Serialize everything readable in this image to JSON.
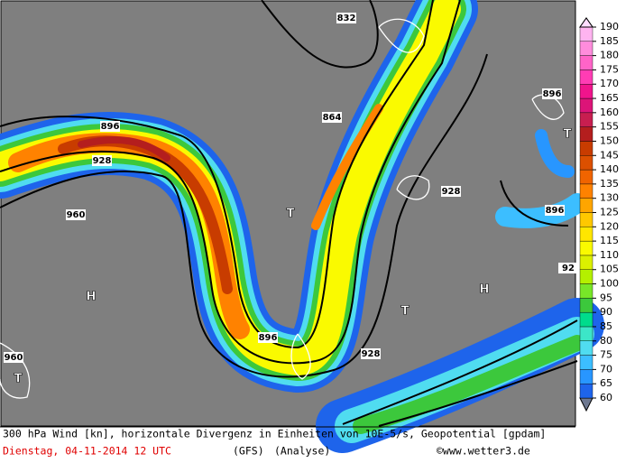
{
  "map": {
    "caption": "300 hPa Wind [kn], horizontale Divergenz in Einheiten von 10E-5/s, Geopotential [gpdam]",
    "date": "Dienstag, 04-11-2014  12 UTC",
    "model": "(GFS)",
    "analysis": "(Analyse)",
    "credit": "©www.wetter3.de",
    "contour_labels": [
      "896",
      "928",
      "960",
      "832",
      "864",
      "896",
      "928",
      "928",
      "896",
      "896",
      "92",
      "960"
    ],
    "pressure_centers": [
      "H",
      "H",
      "T",
      "T",
      "T",
      "T"
    ]
  },
  "colorbar": {
    "ticks": [
      60,
      65,
      70,
      75,
      80,
      85,
      90,
      95,
      100,
      105,
      110,
      115,
      120,
      125,
      130,
      135,
      140,
      145,
      150,
      155,
      160,
      165,
      170,
      175,
      180,
      185,
      190
    ],
    "colors": [
      "#1e64eb",
      "#2896ff",
      "#3cbeff",
      "#50dcf0",
      "#3ce6c8",
      "#00dc8c",
      "#3cc83c",
      "#78e628",
      "#b4f000",
      "#dcf000",
      "#fafa00",
      "#ffe600",
      "#ffc800",
      "#ffa500",
      "#ff8200",
      "#f06400",
      "#dc5000",
      "#c83c00",
      "#b41e1e",
      "#c81e50",
      "#dc1478",
      "#f0148c",
      "#ff3cb4",
      "#ff64c8",
      "#ff8cdc",
      "#ffb4f0",
      "#ffdcff"
    ]
  }
}
